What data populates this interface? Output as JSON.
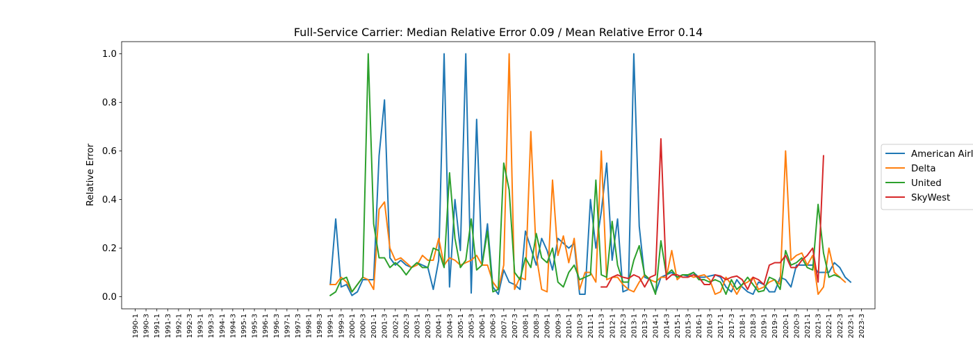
{
  "chart_data": {
    "type": "line",
    "title": "Full-Service Carrier: Median Relative Error 0.09 / Mean Relative Error 0.14",
    "xlabel": "",
    "ylabel": "Relative Error",
    "ylim": [
      -0.05,
      1.05
    ],
    "yticks": [
      "0.0",
      "0.2",
      "0.4",
      "0.6",
      "0.8",
      "1.0"
    ],
    "x_start": "1990-1",
    "x_end": "2023-3",
    "x_step": "quarterly",
    "xtick_labels": [
      "1990-1",
      "1990-3",
      "1991-1",
      "1991-3",
      "1992-1",
      "1992-3",
      "1993-1",
      "1993-3",
      "1994-1",
      "1994-3",
      "1995-1",
      "1995-3",
      "1996-1",
      "1996-3",
      "1997-1",
      "1997-3",
      "1998-1",
      "1998-3",
      "1999-1",
      "1999-3",
      "2000-1",
      "2000-3",
      "2001-1",
      "2001-3",
      "2002-1",
      "2002-3",
      "2003-1",
      "2003-3",
      "2004-1",
      "2004-3",
      "2005-1",
      "2005-3",
      "2006-1",
      "2006-3",
      "2007-1",
      "2007-3",
      "2008-1",
      "2008-3",
      "2009-1",
      "2009-3",
      "2010-1",
      "2010-3",
      "2011-1",
      "2011-3",
      "2012-1",
      "2012-3",
      "2013-1",
      "2013-3",
      "2014-1",
      "2014-3",
      "2015-1",
      "2015-3",
      "2016-1",
      "2016-3",
      "2017-1",
      "2017-3",
      "2018-1",
      "2018-3",
      "2019-1",
      "2019-3",
      "2020-1",
      "2020-3",
      "2021-1",
      "2021-3",
      "2022-1",
      "2022-3",
      "2023-1",
      "2023-3"
    ],
    "legend_placement": "right",
    "grid": false,
    "series": [
      {
        "name": "American Airlines",
        "color": "#1f77b4",
        "start": "1999-1",
        "values": [
          0.05,
          0.32,
          0.04,
          0.05,
          0.005,
          0.02,
          0.07,
          0.07,
          0.07,
          0.58,
          0.81,
          0.16,
          0.13,
          0.15,
          0.13,
          0.12,
          0.14,
          0.13,
          0.12,
          0.03,
          0.15,
          1.0,
          0.04,
          0.4,
          0.19,
          1.0,
          0.015,
          0.73,
          0.13,
          0.3,
          0.04,
          0.01,
          0.11,
          0.06,
          0.05,
          0.03,
          0.27,
          0.2,
          0.13,
          0.24,
          0.19,
          0.11,
          0.24,
          0.22,
          0.2,
          0.22,
          0.01,
          0.01,
          0.4,
          0.2,
          0.35,
          0.55,
          0.15,
          0.32,
          0.02,
          0.03,
          1.0,
          0.29,
          0.08,
          0.07,
          0.015,
          0.08,
          0.09,
          0.1,
          0.08,
          0.09,
          0.085,
          0.1,
          0.08,
          0.08,
          0.085,
          0.09,
          0.08,
          0.04,
          0.02,
          0.07,
          0.04,
          0.02,
          0.01,
          0.06,
          0.05,
          0.02,
          0.02,
          0.08,
          0.07,
          0.04,
          0.13,
          0.13,
          0.13,
          0.13,
          0.1,
          0.1,
          0.1,
          0.14,
          0.12,
          0.08,
          0.06
        ]
      },
      {
        "name": "Delta",
        "color": "#ff7f0e",
        "start": "1999-1",
        "values": [
          0.05,
          0.05,
          0.08,
          0.06,
          0.02,
          0.05,
          0.08,
          0.07,
          0.03,
          0.36,
          0.39,
          0.2,
          0.15,
          0.16,
          0.14,
          0.12,
          0.13,
          0.17,
          0.15,
          0.15,
          0.24,
          0.13,
          0.16,
          0.15,
          0.13,
          0.14,
          0.15,
          0.17,
          0.13,
          0.13,
          0.06,
          0.03,
          0.13,
          1.0,
          0.03,
          0.08,
          0.07,
          0.68,
          0.17,
          0.03,
          0.02,
          0.48,
          0.17,
          0.25,
          0.14,
          0.24,
          0.03,
          0.1,
          0.1,
          0.06,
          0.6,
          0.07,
          0.08,
          0.08,
          0.05,
          0.03,
          0.02,
          0.06,
          0.09,
          0.07,
          0.06,
          0.08,
          0.08,
          0.19,
          0.07,
          0.09,
          0.09,
          0.08,
          0.085,
          0.09,
          0.07,
          0.01,
          0.02,
          0.08,
          0.05,
          0.01,
          0.05,
          0.06,
          0.08,
          0.03,
          0.04,
          0.06,
          0.07,
          0.05,
          0.6,
          0.15,
          0.17,
          0.18,
          0.13,
          0.17,
          0.01,
          0.04,
          0.2,
          0.1,
          0.08,
          0.06
        ]
      },
      {
        "name": "United",
        "color": "#2ca02c",
        "start": "1999-1",
        "values": [
          0.005,
          0.02,
          0.07,
          0.08,
          0.02,
          0.05,
          0.08,
          1.0,
          0.3,
          0.16,
          0.16,
          0.12,
          0.14,
          0.12,
          0.09,
          0.12,
          0.14,
          0.12,
          0.12,
          0.2,
          0.19,
          0.12,
          0.51,
          0.24,
          0.12,
          0.15,
          0.32,
          0.11,
          0.13,
          0.27,
          0.02,
          0.03,
          0.55,
          0.44,
          0.1,
          0.07,
          0.16,
          0.12,
          0.26,
          0.16,
          0.14,
          0.2,
          0.06,
          0.04,
          0.1,
          0.13,
          0.07,
          0.08,
          0.09,
          0.48,
          0.09,
          0.08,
          0.31,
          0.13,
          0.06,
          0.06,
          0.15,
          0.21,
          0.09,
          0.07,
          0.01,
          0.23,
          0.09,
          0.11,
          0.08,
          0.09,
          0.09,
          0.1,
          0.07,
          0.07,
          0.06,
          0.07,
          0.06,
          0.01,
          0.07,
          0.03,
          0.05,
          0.08,
          0.05,
          0.02,
          0.025,
          0.08,
          0.07,
          0.03,
          0.19,
          0.13,
          0.14,
          0.16,
          0.12,
          0.11,
          0.38,
          0.18,
          0.08,
          0.09,
          0.08
        ]
      },
      {
        "name": "SkyWest",
        "color": "#d62728",
        "start": "2011-3",
        "values": [
          0.04,
          0.04,
          0.08,
          0.09,
          0.08,
          0.075,
          0.09,
          0.08,
          0.04,
          0.08,
          0.09,
          0.65,
          0.07,
          0.09,
          0.09,
          0.08,
          0.08,
          0.09,
          0.08,
          0.05,
          0.05,
          0.09,
          0.085,
          0.07,
          0.08,
          0.085,
          0.07,
          0.03,
          0.08,
          0.07,
          0.05,
          0.13,
          0.14,
          0.14,
          0.17,
          0.12,
          0.12,
          0.15,
          0.17,
          0.2,
          0.06,
          0.58
        ]
      }
    ]
  }
}
